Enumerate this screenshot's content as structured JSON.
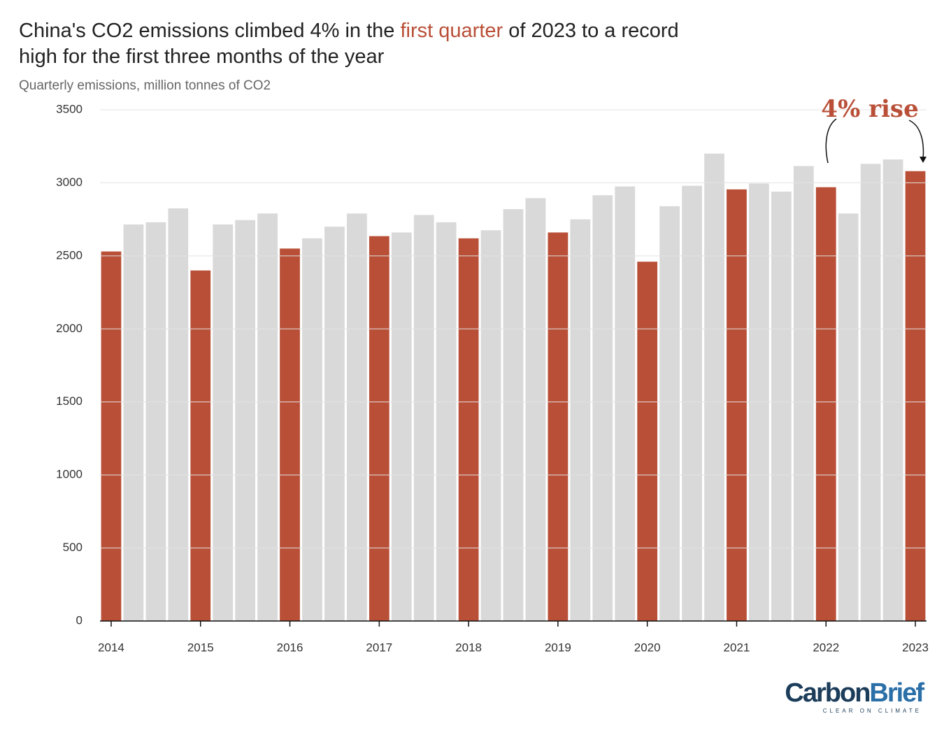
{
  "chart_data": {
    "type": "bar",
    "title_parts": [
      "China's CO2 emissions climbed 4% in the ",
      "first quarter",
      " of 2023 to a record",
      "high for the first three months of the year"
    ],
    "title_highlight_color": "#b94f37",
    "subtitle": "Quarterly emissions, million tonnes of CO2",
    "categories": [
      "2014",
      null,
      null,
      null,
      "2015",
      null,
      null,
      null,
      "2016",
      null,
      null,
      null,
      "2017",
      null,
      null,
      null,
      "2018",
      null,
      null,
      null,
      "2019",
      null,
      null,
      null,
      "2020",
      null,
      null,
      null,
      "2021",
      null,
      null,
      null,
      "2022",
      null,
      null,
      null,
      "2023"
    ],
    "values": [
      2530,
      2715,
      2730,
      2825,
      2400,
      2715,
      2745,
      2790,
      2550,
      2620,
      2700,
      2790,
      2635,
      2660,
      2780,
      2730,
      2620,
      2675,
      2820,
      2895,
      2660,
      2750,
      2915,
      2975,
      2460,
      2840,
      2980,
      3200,
      2955,
      2995,
      2940,
      3115,
      2970,
      2790,
      3130,
      3160,
      3080
    ],
    "colors": [
      "#b94f37",
      "#d9d9d9",
      "#d9d9d9",
      "#d9d9d9",
      "#b94f37",
      "#d9d9d9",
      "#d9d9d9",
      "#d9d9d9",
      "#b94f37",
      "#d9d9d9",
      "#d9d9d9",
      "#d9d9d9",
      "#b94f37",
      "#d9d9d9",
      "#d9d9d9",
      "#d9d9d9",
      "#b94f37",
      "#d9d9d9",
      "#d9d9d9",
      "#d9d9d9",
      "#b94f37",
      "#d9d9d9",
      "#d9d9d9",
      "#d9d9d9",
      "#b94f37",
      "#d9d9d9",
      "#d9d9d9",
      "#d9d9d9",
      "#b94f37",
      "#d9d9d9",
      "#d9d9d9",
      "#d9d9d9",
      "#b94f37",
      "#d9d9d9",
      "#d9d9d9",
      "#d9d9d9",
      "#b94f37"
    ],
    "ylim": [
      0,
      3500
    ],
    "yticks": [
      0,
      500,
      1000,
      1500,
      2000,
      2500,
      3000,
      3500
    ],
    "grid": true,
    "annotation": "4% rise",
    "logo": {
      "name_parts": [
        "Carbon",
        "Brief"
      ],
      "tagline": "CLEAR ON CLIMATE"
    }
  }
}
